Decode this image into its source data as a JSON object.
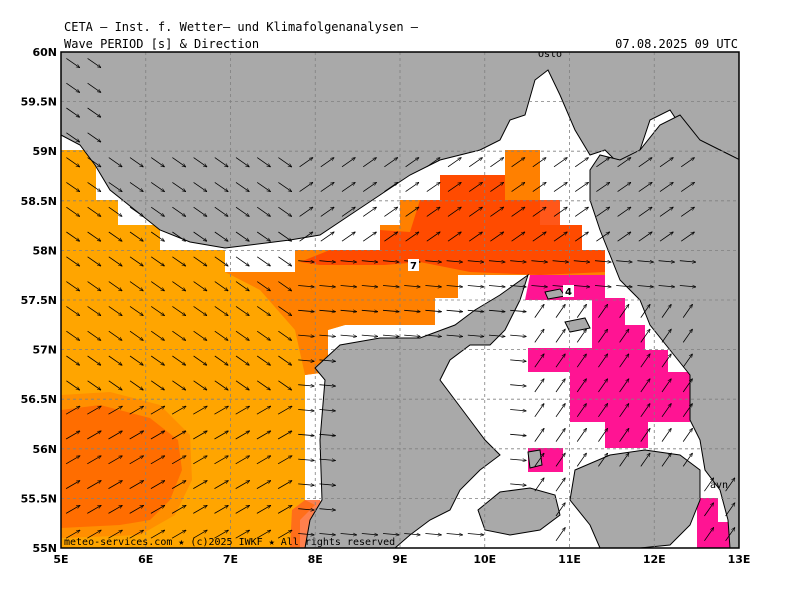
{
  "header": {
    "title": "CETA — Inst. f. Wetter— und Klimafolgenanalysen —",
    "subtitle_left": "Wave PERIOD [s] & Direction",
    "subtitle_right": "07.08.2025 09 UTC"
  },
  "map": {
    "lon_min": 5,
    "lon_max": 13,
    "lat_min": 55,
    "lat_max": 60,
    "x_ticks": [
      "5E",
      "6E",
      "7E",
      "8E",
      "9E",
      "10E",
      "11E",
      "12E",
      "13E"
    ],
    "y_ticks": [
      "55N",
      "55.5N",
      "56N",
      "56.5N",
      "57N",
      "57.5N",
      "58N",
      "58.5N",
      "59N",
      "59.5N",
      "60N"
    ],
    "place_labels": [
      "Oslo",
      "avn"
    ],
    "contour_labels": [
      "7",
      "4"
    ],
    "credit": "meteo-services.com ★ (c)2025 IWKF ★ All rights reserved",
    "colors": {
      "land": "#a9a9a9",
      "sea_low": "#ffffff",
      "period_mid": "#ffa500",
      "period_high": "#ff8000",
      "period_higher": "#ff4500",
      "period_short": "#ff1493"
    }
  }
}
